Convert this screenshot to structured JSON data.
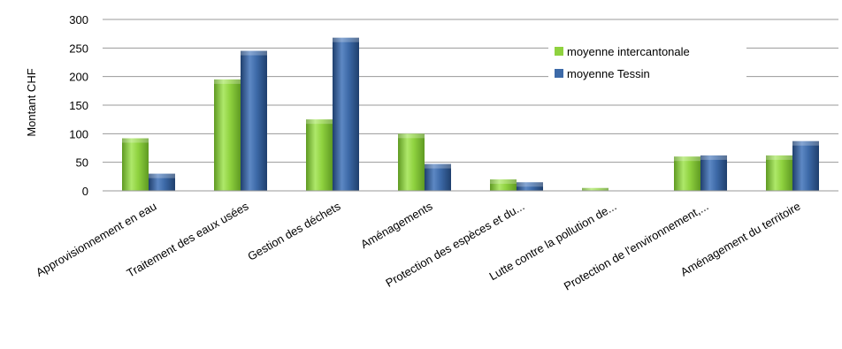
{
  "chart_data": {
    "type": "bar",
    "ylabel": "Montant CHF",
    "ylim": [
      0,
      300
    ],
    "yticks": [
      0,
      50,
      100,
      150,
      200,
      250,
      300
    ],
    "grid": true,
    "legend_position": "top-right",
    "categories": [
      "Approvisionnement en eau",
      "Traitement des eaux usées",
      "Gestion des déchets",
      "Aménagements",
      "Protection des espèces et du...",
      "Lutte contre la pollution de...",
      "Protection de l'environnement,...",
      "Aménagement du territoire"
    ],
    "series": [
      {
        "name": "moyenne intercantonale",
        "color": "#8fd23f",
        "values": [
          92,
          195,
          125,
          100,
          20,
          5,
          60,
          62
        ]
      },
      {
        "name": "moyenne Tessin",
        "color": "#3d6aa8",
        "values": [
          30,
          245,
          268,
          47,
          15,
          0,
          62,
          87
        ]
      }
    ]
  }
}
